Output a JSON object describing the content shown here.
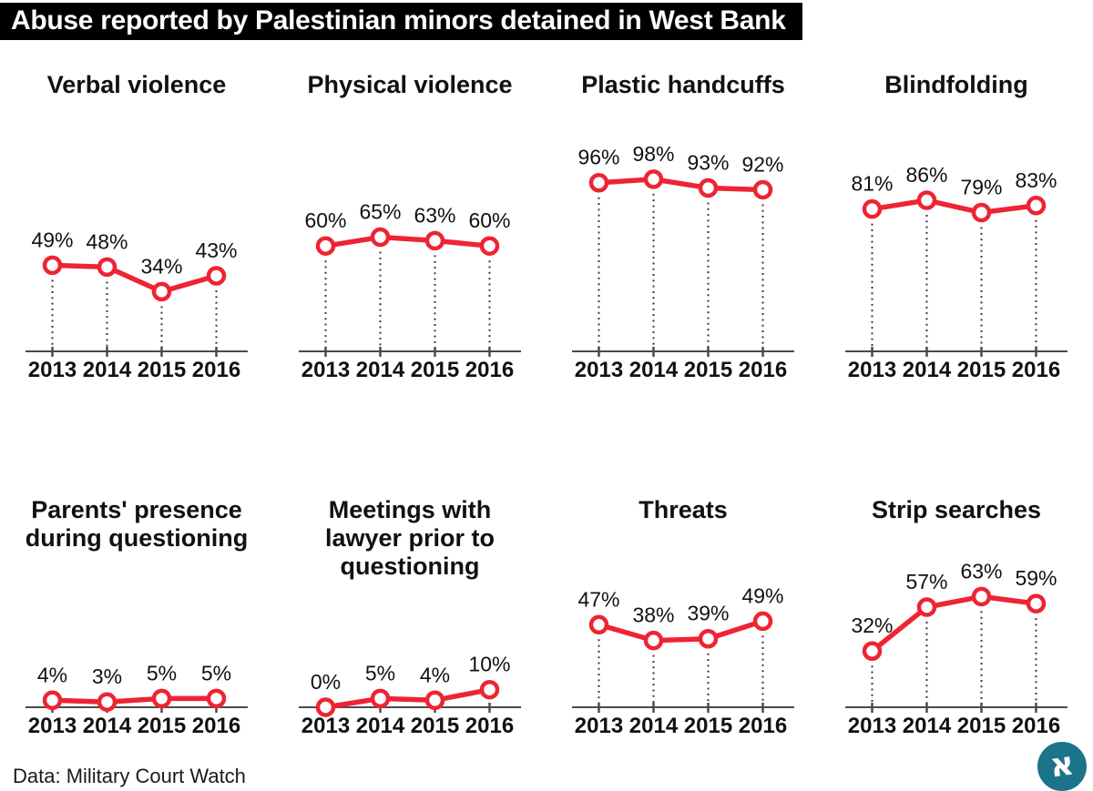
{
  "header": {
    "title": "Abuse reported by Palestinian minors detained in West Bank"
  },
  "chart_data": [
    {
      "type": "line",
      "title": "Verbal violence",
      "categories": [
        "2013",
        "2014",
        "2015",
        "2016"
      ],
      "values": [
        49,
        48,
        34,
        43
      ],
      "unit": "%",
      "ylim": [
        0,
        100
      ],
      "xlabel": "",
      "ylabel": "",
      "grid": false,
      "marker": "open-circle"
    },
    {
      "type": "line",
      "title": "Physical violence",
      "categories": [
        "2013",
        "2014",
        "2015",
        "2016"
      ],
      "values": [
        60,
        65,
        63,
        60
      ],
      "unit": "%",
      "ylim": [
        0,
        100
      ],
      "xlabel": "",
      "ylabel": "",
      "grid": false,
      "marker": "open-circle"
    },
    {
      "type": "line",
      "title": "Plastic handcuffs",
      "categories": [
        "2013",
        "2014",
        "2015",
        "2016"
      ],
      "values": [
        96,
        98,
        93,
        92
      ],
      "unit": "%",
      "ylim": [
        0,
        100
      ],
      "xlabel": "",
      "ylabel": "",
      "grid": false,
      "marker": "open-circle"
    },
    {
      "type": "line",
      "title": "Blindfolding",
      "categories": [
        "2013",
        "2014",
        "2015",
        "2016"
      ],
      "values": [
        81,
        86,
        79,
        83
      ],
      "unit": "%",
      "ylim": [
        0,
        100
      ],
      "xlabel": "",
      "ylabel": "",
      "grid": false,
      "marker": "open-circle"
    },
    {
      "type": "line",
      "title": "Parents' presence during questioning",
      "categories": [
        "2013",
        "2014",
        "2015",
        "2016"
      ],
      "values": [
        4,
        3,
        5,
        5
      ],
      "unit": "%",
      "ylim": [
        0,
        100
      ],
      "xlabel": "",
      "ylabel": "",
      "grid": false,
      "marker": "open-circle"
    },
    {
      "type": "line",
      "title": "Meetings with lawyer prior to questioning",
      "categories": [
        "2013",
        "2014",
        "2015",
        "2016"
      ],
      "values": [
        0,
        5,
        4,
        10
      ],
      "unit": "%",
      "ylim": [
        0,
        100
      ],
      "xlabel": "",
      "ylabel": "",
      "grid": false,
      "marker": "open-circle"
    },
    {
      "type": "line",
      "title": "Threats",
      "categories": [
        "2013",
        "2014",
        "2015",
        "2016"
      ],
      "values": [
        47,
        38,
        39,
        49
      ],
      "unit": "%",
      "ylim": [
        0,
        100
      ],
      "xlabel": "",
      "ylabel": "",
      "grid": false,
      "marker": "open-circle"
    },
    {
      "type": "line",
      "title": "Strip searches",
      "categories": [
        "2013",
        "2014",
        "2015",
        "2016"
      ],
      "values": [
        32,
        57,
        63,
        59
      ],
      "unit": "%",
      "ylim": [
        0,
        100
      ],
      "xlabel": "",
      "ylabel": "",
      "grid": false,
      "marker": "open-circle"
    }
  ],
  "footer": {
    "source": "Data: Military Court Watch",
    "logo_glyph": "א"
  },
  "colors": {
    "line": "#ee2433",
    "marker_fill": "#ffffff",
    "axis": "#4a4a4a",
    "dotted": "#3a3a3a",
    "text": "#111111",
    "header_bg": "#000000",
    "header_text": "#ffffff",
    "logo_bg": "#1b7489"
  }
}
